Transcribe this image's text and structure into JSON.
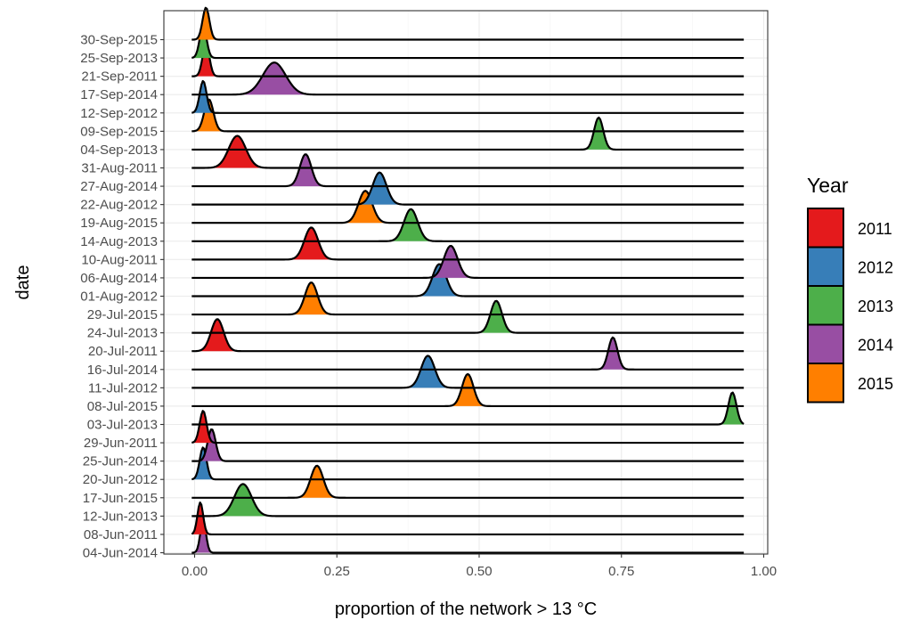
{
  "chart_data": {
    "type": "ridgeline",
    "xlabel": "proportion of the network > 13 °C",
    "ylabel": "date",
    "xlim": [
      -0.05,
      1.01
    ],
    "x_ticks": [
      0,
      0.25,
      0.5,
      0.75,
      1
    ],
    "x_tick_labels": [
      "0.00",
      "0.25",
      "0.50",
      "0.75",
      "1.00"
    ],
    "grid": true,
    "legend": {
      "title": "Year",
      "placement": "right",
      "items": [
        {
          "label": "2011",
          "color": "#e41a1c"
        },
        {
          "label": "2012",
          "color": "#377eb8"
        },
        {
          "label": "2013",
          "color": "#4daf4a"
        },
        {
          "label": "2014",
          "color": "#984ea3"
        },
        {
          "label": "2015",
          "color": "#ff7f00"
        }
      ]
    },
    "rows": [
      {
        "date": "30-Sep-2015",
        "year": "2015",
        "peak": 0.02,
        "spread": 0.006
      },
      {
        "date": "25-Sep-2013",
        "year": "2013",
        "peak": 0.015,
        "spread": 0.006
      },
      {
        "date": "21-Sep-2011",
        "year": "2011",
        "peak": 0.02,
        "spread": 0.006
      },
      {
        "date": "17-Sep-2014",
        "year": "2014",
        "peak": 0.14,
        "spread": 0.02
      },
      {
        "date": "12-Sep-2012",
        "year": "2012",
        "peak": 0.015,
        "spread": 0.006
      },
      {
        "date": "09-Sep-2015",
        "year": "2015",
        "peak": 0.025,
        "spread": 0.008
      },
      {
        "date": "04-Sep-2013",
        "year": "2013",
        "peak": 0.71,
        "spread": 0.008
      },
      {
        "date": "31-Aug-2011",
        "year": "2011",
        "peak": 0.075,
        "spread": 0.015
      },
      {
        "date": "27-Aug-2014",
        "year": "2014",
        "peak": 0.195,
        "spread": 0.01
      },
      {
        "date": "22-Aug-2012",
        "year": "2012",
        "peak": 0.325,
        "spread": 0.012
      },
      {
        "date": "19-Aug-2015",
        "year": "2015",
        "peak": 0.3,
        "spread": 0.012
      },
      {
        "date": "14-Aug-2013",
        "year": "2013",
        "peak": 0.38,
        "spread": 0.012
      },
      {
        "date": "10-Aug-2011",
        "year": "2011",
        "peak": 0.205,
        "spread": 0.012
      },
      {
        "date": "06-Aug-2014",
        "year": "2014",
        "peak": 0.45,
        "spread": 0.012
      },
      {
        "date": "01-Aug-2012",
        "year": "2012",
        "peak": 0.43,
        "spread": 0.012
      },
      {
        "date": "29-Jul-2015",
        "year": "2015",
        "peak": 0.205,
        "spread": 0.011
      },
      {
        "date": "24-Jul-2013",
        "year": "2013",
        "peak": 0.53,
        "spread": 0.01
      },
      {
        "date": "20-Jul-2011",
        "year": "2011",
        "peak": 0.04,
        "spread": 0.011
      },
      {
        "date": "16-Jul-2014",
        "year": "2014",
        "peak": 0.735,
        "spread": 0.008
      },
      {
        "date": "11-Jul-2012",
        "year": "2012",
        "peak": 0.41,
        "spread": 0.012
      },
      {
        "date": "08-Jul-2015",
        "year": "2015",
        "peak": 0.48,
        "spread": 0.01
      },
      {
        "date": "03-Jul-2013",
        "year": "2013",
        "peak": 0.945,
        "spread": 0.007
      },
      {
        "date": "29-Jun-2011",
        "year": "2011",
        "peak": 0.015,
        "spread": 0.006
      },
      {
        "date": "25-Jun-2014",
        "year": "2014",
        "peak": 0.03,
        "spread": 0.007
      },
      {
        "date": "20-Jun-2012",
        "year": "2012",
        "peak": 0.015,
        "spread": 0.006
      },
      {
        "date": "17-Jun-2015",
        "year": "2015",
        "peak": 0.215,
        "spread": 0.011
      },
      {
        "date": "12-Jun-2013",
        "year": "2013",
        "peak": 0.085,
        "spread": 0.015
      },
      {
        "date": "08-Jun-2011",
        "year": "2011",
        "peak": 0.01,
        "spread": 0.005
      },
      {
        "date": "04-Jun-2014",
        "year": "2014",
        "peak": 0.015,
        "spread": 0.005
      }
    ]
  }
}
